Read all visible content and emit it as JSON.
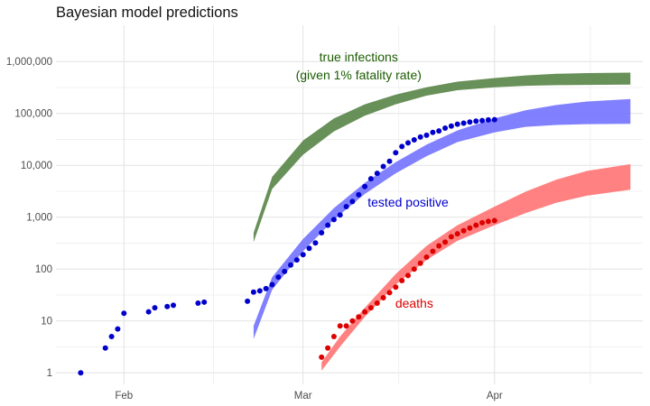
{
  "chart_data": {
    "type": "scatter",
    "title": "Bayesian model predictions",
    "xlabel": "",
    "ylabel": "",
    "y_scale": "log10",
    "ylim": [
      0.6,
      5000000
    ],
    "xlim": [
      "2020-01-21",
      "2020-04-25"
    ],
    "x_ticks": [
      {
        "date": "2020-02-01",
        "label": "Feb"
      },
      {
        "date": "2020-03-01",
        "label": "Mar"
      },
      {
        "date": "2020-04-01",
        "label": "Apr"
      }
    ],
    "y_ticks": [
      {
        "value": 1,
        "label": "1"
      },
      {
        "value": 10,
        "label": "10"
      },
      {
        "value": 100,
        "label": "100"
      },
      {
        "value": 1000,
        "label": "1,000"
      },
      {
        "value": 10000,
        "label": "10,000"
      },
      {
        "value": 100000,
        "label": "100,000"
      },
      {
        "value": 1000000,
        "label": "1,000,000"
      }
    ],
    "grid": true,
    "bands": [
      {
        "color": "#4e7d3c",
        "x": [
          "2020-02-22",
          "2020-02-25",
          "2020-03-01",
          "2020-03-06",
          "2020-03-11",
          "2020-03-16",
          "2020-03-21",
          "2020-03-26",
          "2020-04-01",
          "2020-04-06",
          "2020-04-11",
          "2020-04-16",
          "2020-04-23"
        ],
        "lower": [
          330,
          3500,
          16000,
          45000,
          90000,
          150000,
          220000,
          280000,
          320000,
          340000,
          350000,
          355000,
          360000
        ],
        "upper": [
          500,
          6000,
          30000,
          80000,
          150000,
          230000,
          320000,
          410000,
          480000,
          540000,
          580000,
          600000,
          610000
        ]
      },
      {
        "color": "#6b6bff",
        "x": [
          "2020-02-22",
          "2020-02-25",
          "2020-03-01",
          "2020-03-06",
          "2020-03-11",
          "2020-03-16",
          "2020-03-21",
          "2020-03-26",
          "2020-04-01",
          "2020-04-06",
          "2020-04-11",
          "2020-04-16",
          "2020-04-23"
        ],
        "lower": [
          4.5,
          40,
          220,
          900,
          2800,
          7000,
          15000,
          28000,
          43000,
          55000,
          60000,
          62000,
          63000
        ],
        "upper": [
          8,
          70,
          380,
          1500,
          4600,
          11500,
          25000,
          47000,
          80000,
          115000,
          145000,
          170000,
          190000
        ]
      },
      {
        "color": "#ff6b6b",
        "x": [
          "2020-03-04",
          "2020-03-07",
          "2020-03-11",
          "2020-03-16",
          "2020-03-21",
          "2020-03-26",
          "2020-04-01",
          "2020-04-06",
          "2020-04-11",
          "2020-04-16",
          "2020-04-23"
        ],
        "lower": [
          1.1,
          3.2,
          12,
          50,
          150,
          350,
          700,
          1200,
          1900,
          2600,
          3400
        ],
        "upper": [
          1.6,
          5,
          18,
          80,
          280,
          700,
          1600,
          3100,
          5300,
          7800,
          10500
        ]
      }
    ],
    "series": [
      {
        "color": "#0000cc",
        "x": [
          "2020-01-25",
          "2020-01-29",
          "2020-01-30",
          "2020-01-31",
          "2020-02-01",
          "2020-02-05",
          "2020-02-06",
          "2020-02-08",
          "2020-02-09",
          "2020-02-13",
          "2020-02-14",
          "2020-02-21",
          "2020-02-22",
          "2020-02-23",
          "2020-02-24",
          "2020-02-25",
          "2020-02-26",
          "2020-02-27",
          "2020-02-28",
          "2020-02-29",
          "2020-03-01",
          "2020-03-02",
          "2020-03-03",
          "2020-03-04",
          "2020-03-05",
          "2020-03-06",
          "2020-03-07",
          "2020-03-08",
          "2020-03-09",
          "2020-03-10",
          "2020-03-11",
          "2020-03-12",
          "2020-03-13",
          "2020-03-14",
          "2020-03-15",
          "2020-03-16",
          "2020-03-17",
          "2020-03-18",
          "2020-03-19",
          "2020-03-20",
          "2020-03-21",
          "2020-03-22",
          "2020-03-23",
          "2020-03-24",
          "2020-03-25",
          "2020-03-26",
          "2020-03-27",
          "2020-03-28",
          "2020-03-29",
          "2020-03-30",
          "2020-03-31",
          "2020-04-01"
        ],
        "values": [
          1,
          3,
          5,
          7,
          14,
          15,
          18,
          19,
          20,
          22,
          23,
          24,
          36,
          38,
          42,
          50,
          70,
          90,
          120,
          150,
          190,
          250,
          320,
          500,
          700,
          900,
          1100,
          1600,
          2000,
          2700,
          3900,
          5500,
          7000,
          9500,
          12000,
          17500,
          23000,
          27000,
          31000,
          35000,
          38000,
          43000,
          46000,
          52000,
          57000,
          62000,
          65000,
          68000,
          71000,
          73000,
          75000,
          76000
        ]
      },
      {
        "color": "#dd0000",
        "x": [
          "2020-03-04",
          "2020-03-05",
          "2020-03-06",
          "2020-03-07",
          "2020-03-08",
          "2020-03-09",
          "2020-03-10",
          "2020-03-11",
          "2020-03-12",
          "2020-03-13",
          "2020-03-14",
          "2020-03-15",
          "2020-03-16",
          "2020-03-17",
          "2020-03-18",
          "2020-03-19",
          "2020-03-20",
          "2020-03-21",
          "2020-03-22",
          "2020-03-23",
          "2020-03-24",
          "2020-03-25",
          "2020-03-26",
          "2020-03-27",
          "2020-03-28",
          "2020-03-29",
          "2020-03-30",
          "2020-03-31",
          "2020-04-01"
        ],
        "values": [
          2,
          3,
          5,
          8,
          8,
          10,
          12,
          15,
          18,
          22,
          28,
          35,
          45,
          60,
          75,
          100,
          130,
          170,
          220,
          280,
          330,
          420,
          480,
          550,
          620,
          700,
          780,
          830,
          860
        ]
      }
    ],
    "annotations": [
      {
        "lines": [
          "true infections",
          "(given 1% fatality rate)"
        ],
        "date": "2020-03-10",
        "value": 1000000,
        "color": "#1a5c00"
      },
      {
        "lines": [
          "tested positive"
        ],
        "date": "2020-03-18",
        "value": 1600,
        "color": "#0000cc"
      },
      {
        "lines": [
          "deaths"
        ],
        "date": "2020-03-19",
        "value": 18,
        "color": "#dd0000"
      }
    ]
  }
}
